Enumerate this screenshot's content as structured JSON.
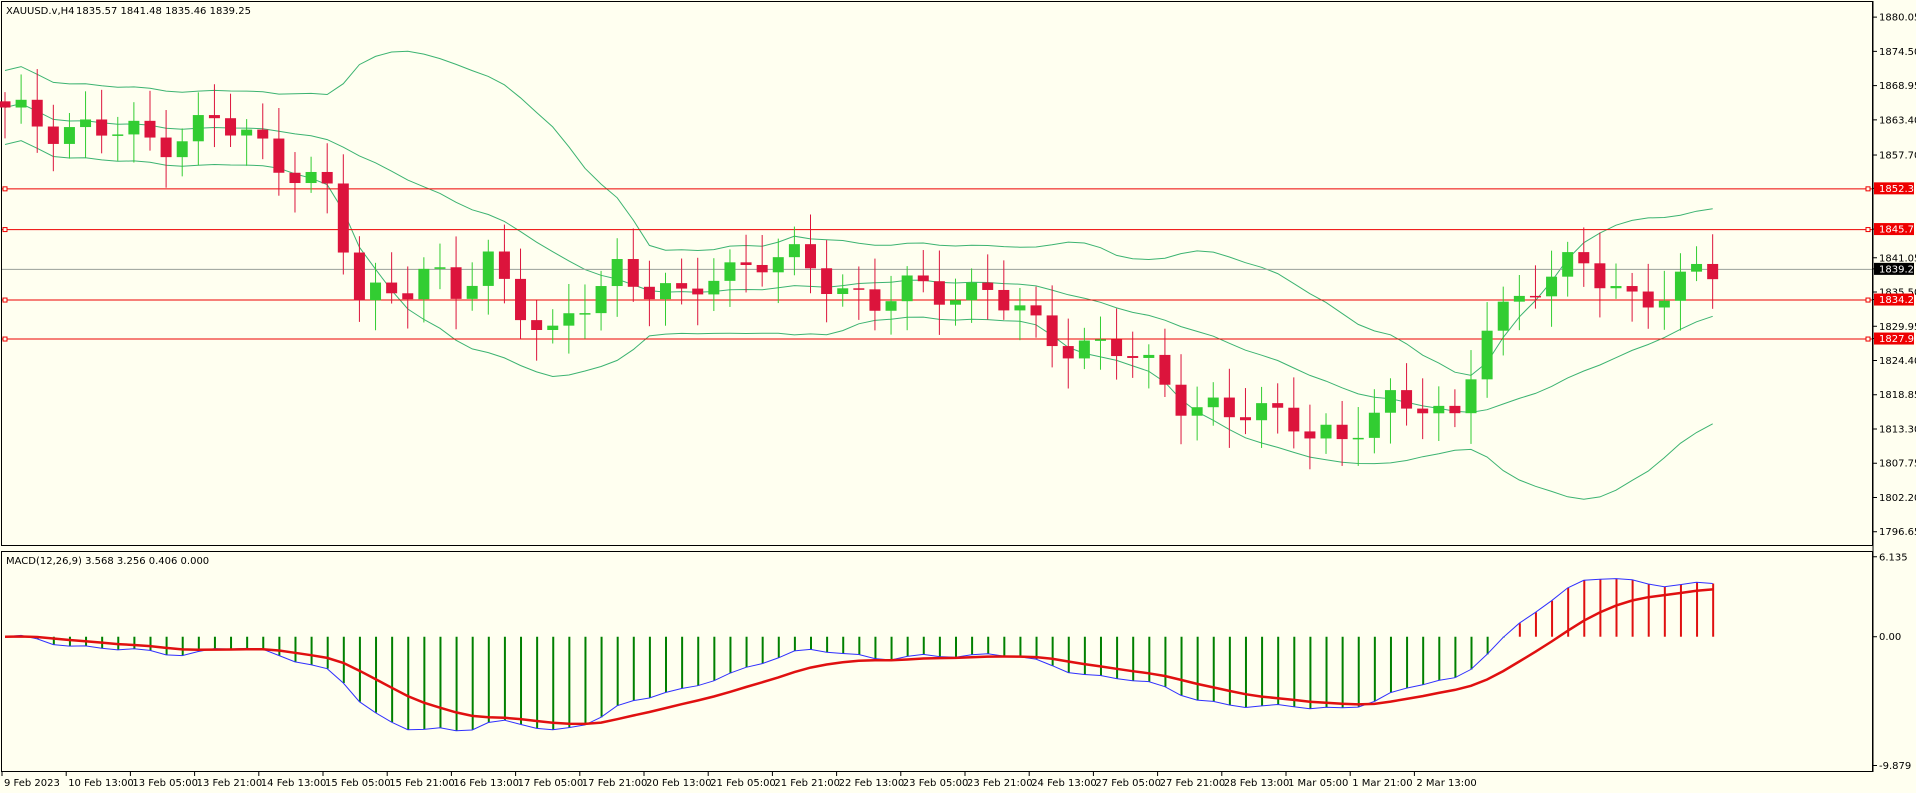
{
  "chart_data": [
    {
      "type": "candlestick",
      "title": "XAUUSD.v,H4",
      "ohlc_readout": "1835.57 1841.48 1835.46 1839.25",
      "ylim": [
        1794.5,
        1882.5
      ],
      "price_ticks": [
        "1880.05",
        "1874.50",
        "1868.95",
        "1863.40",
        "1857.70",
        "1852.30",
        "1845.70",
        "1841.05",
        "1839.25",
        "1835.50",
        "1834.28",
        "1829.95",
        "1827.96",
        "1824.40",
        "1818.85",
        "1813.30",
        "1807.75",
        "1802.20",
        "1796.65"
      ],
      "horizontal_levels": [
        {
          "label": "1852.30",
          "value": 1852.3,
          "color": "#ee0000"
        },
        {
          "label": "1845.70",
          "value": 1845.7,
          "color": "#ee0000"
        },
        {
          "label": "1834.28",
          "value": 1834.28,
          "color": "#ee0000"
        },
        {
          "label": "1827.96",
          "value": 1827.96,
          "color": "#ee0000"
        }
      ],
      "current_price": {
        "label": "1839.25",
        "value": 1839.25
      },
      "time_labels": [
        "9 Feb 2023",
        "10 Feb 13:00",
        "13 Feb 05:00",
        "13 Feb 21:00",
        "14 Feb 13:00",
        "15 Feb 05:00",
        "15 Feb 21:00",
        "16 Feb 13:00",
        "17 Feb 05:00",
        "17 Feb 21:00",
        "20 Feb 13:00",
        "21 Feb 05:00",
        "21 Feb 21:00",
        "22 Feb 13:00",
        "23 Feb 05:00",
        "23 Feb 21:00",
        "24 Feb 13:00",
        "27 Feb 05:00",
        "27 Feb 21:00",
        "28 Feb 13:00",
        "1 Mar 05:00",
        "1 Mar 21:00",
        "2 Mar 13:00"
      ],
      "colors": {
        "bull": "#32cd32",
        "bear": "#dc143c",
        "bands": "#3cb371"
      }
    },
    {
      "type": "macd",
      "label": "MACD(12,26,9) 3.568 3.256 0.406 0.000",
      "ylim": [
        -10.3,
        6.5
      ],
      "ticks": [
        "6.135",
        "0.00",
        "-9.879"
      ],
      "colors": {
        "macd": "#3030ff",
        "signal": "#e01010",
        "hist_pos": "#e01010",
        "hist_neg": "#008000"
      }
    }
  ]
}
